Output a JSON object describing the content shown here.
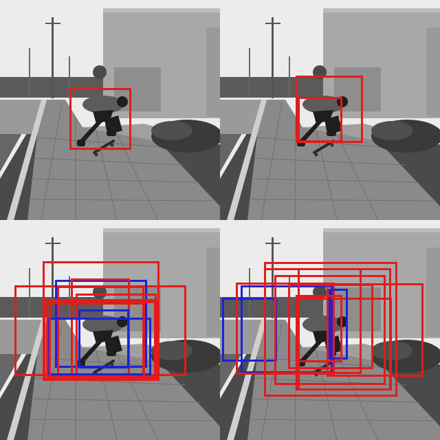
{
  "image": {
    "subject": "skateboarder-kickflip",
    "palette": "grayscale"
  },
  "colors": {
    "red": "#e21c1c",
    "blue": "#1c22d6",
    "sky": "#ececec",
    "building": "#a8a8a8",
    "building_dark": "#8e8e8e",
    "path": "#8a8a8a",
    "grass": "#4a4a4a",
    "shrub": "#3a3a3a",
    "person": "#1e1e1e"
  },
  "panels": [
    {
      "id": "top-left",
      "box_count": 1
    },
    {
      "id": "top-right",
      "box_count": 2
    },
    {
      "id": "bottom-left",
      "box_count": 11
    },
    {
      "id": "bottom-right",
      "box_count": 12
    }
  ]
}
